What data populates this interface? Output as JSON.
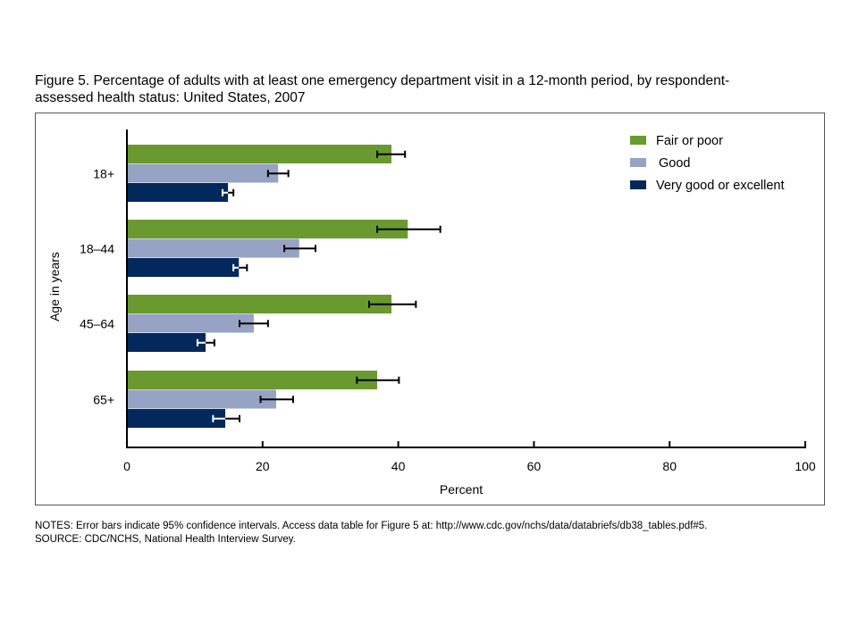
{
  "title": "Figure 5. Percentage of adults with at least one emergency department visit in a 12-month period, by respondent-assessed health status: United States, 2007",
  "title_lines": [
    "Figure 5. Percentage of adults with at least one emergency department visit in a 12-month period, by respondent-",
    "assessed health status: United States, 2007"
  ],
  "notes": [
    "NOTES: Error bars indicate 95% confidence intervals. Access data table for Figure 5 at: http://www.cdc.gov/nchs/data/databriefs/db38_tables.pdf#5.",
    "SOURCE: CDC/NCHS, National Health Interview Survey."
  ],
  "chart_data": {
    "type": "bar",
    "orientation": "horizontal",
    "title": "Figure 5. Percentage of adults with at least one emergency department visit in a 12-month period, by respondent-assessed health status: United States, 2007",
    "xlabel": "Percent",
    "ylabel": "Age in years",
    "xlim": [
      0,
      100
    ],
    "xticks": [
      0,
      20,
      40,
      60,
      80,
      100
    ],
    "grid": false,
    "legend_position": "top-right",
    "categories": [
      "18+",
      "18–44",
      "45–64",
      "65+"
    ],
    "series": [
      {
        "name": "Fair or poor",
        "color": "#6a9a2f",
        "values": [
          39.0,
          41.4,
          39.0,
          36.9
        ],
        "ci_lower": [
          36.9,
          36.9,
          35.7,
          33.9
        ],
        "ci_upper": [
          41.0,
          46.2,
          42.6,
          40.1
        ]
      },
      {
        "name": "Good",
        "color": "#96a3c4",
        "values": [
          22.3,
          25.4,
          18.7,
          22.0
        ],
        "ci_lower": [
          20.8,
          23.2,
          16.6,
          19.7
        ],
        "ci_upper": [
          23.8,
          27.8,
          20.8,
          24.5
        ]
      },
      {
        "name": "Very good or excellent",
        "color": "#02285c",
        "values": [
          14.9,
          16.5,
          11.6,
          14.5
        ],
        "ci_lower": [
          14.1,
          15.7,
          10.4,
          12.7
        ],
        "ci_upper": [
          15.7,
          17.7,
          12.9,
          16.6
        ]
      }
    ]
  }
}
